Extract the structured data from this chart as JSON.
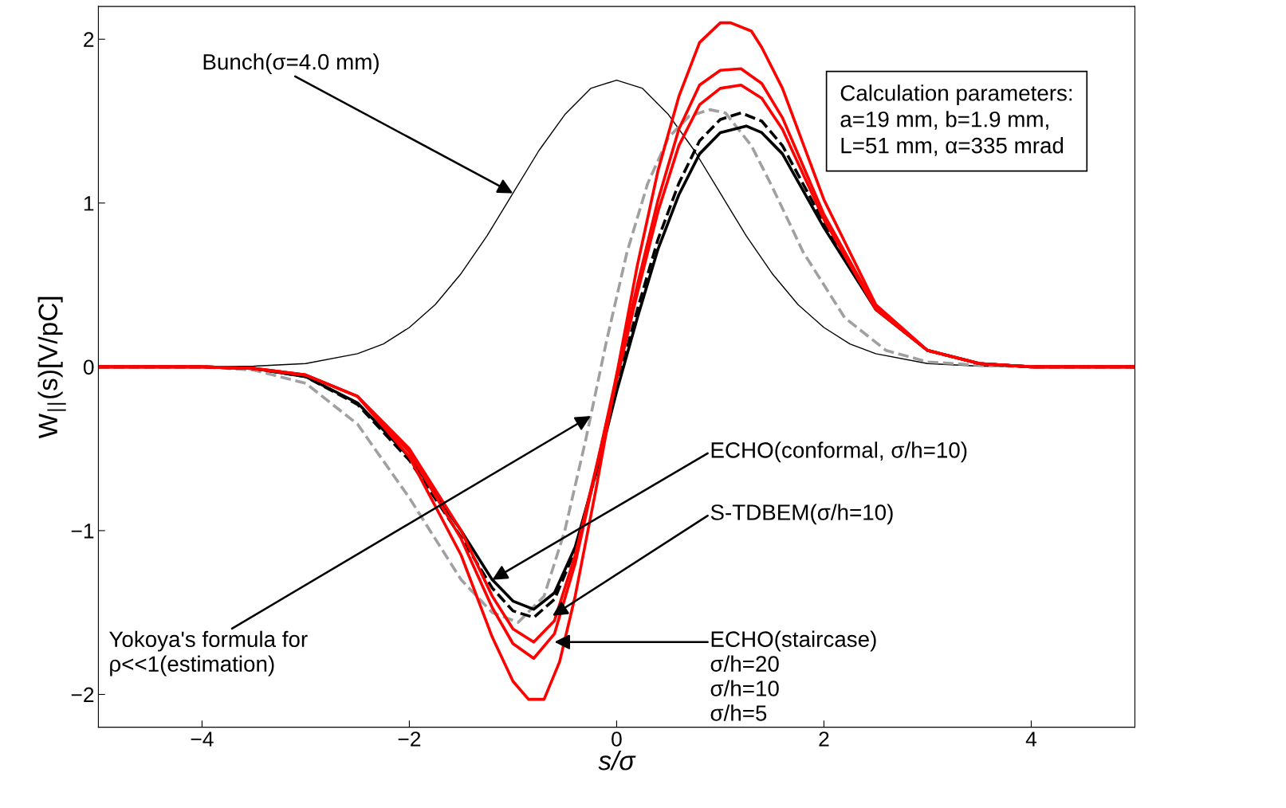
{
  "chart_data": {
    "type": "line",
    "xlabel": "s/σ",
    "ylabel": "W$_{||}$(s)[V/pC]",
    "xlim": [
      -5,
      5
    ],
    "ylim": [
      -2.2,
      2.2
    ],
    "xticks": [
      {
        "value": -4,
        "label": "−4"
      },
      {
        "value": -2,
        "label": "−2"
      },
      0,
      2,
      4
    ],
    "yticks": [
      {
        "value": -2,
        "label": "−2"
      },
      {
        "value": -1,
        "label": "−1"
      },
      0,
      1,
      2
    ],
    "grid": false,
    "legend": false,
    "marker": "none",
    "series": [
      {
        "color": "#000000",
        "line_style": "solid",
        "x": [
          -5,
          -4,
          -3.5,
          -3,
          -2.5,
          -2.25,
          -2,
          -1.75,
          -1.5,
          -1.25,
          -1,
          -0.75,
          -0.5,
          -0.25,
          0,
          0.25,
          0.5,
          0.75,
          1,
          1.25,
          1.5,
          1.75,
          2,
          2.25,
          2.5,
          3,
          3.5,
          4,
          5
        ],
        "values": [
          0,
          0,
          0.004,
          0.02,
          0.08,
          0.14,
          0.24,
          0.38,
          0.57,
          0.8,
          1.06,
          1.32,
          1.54,
          1.7,
          1.75,
          1.7,
          1.54,
          1.32,
          1.06,
          0.8,
          0.57,
          0.38,
          0.24,
          0.14,
          0.08,
          0.02,
          0.004,
          0,
          0
        ]
      },
      {
        "color": "#a0a0a0",
        "line_style": "dashed",
        "x": [
          -5,
          -4,
          -3.5,
          -3,
          -2.5,
          -2,
          -1.5,
          -1.2,
          -0.95,
          -0.7,
          -0.5,
          -0.3,
          -0.1,
          0.1,
          0.3,
          0.5,
          0.7,
          0.9,
          1.05,
          1.3,
          1.5,
          1.8,
          2.2,
          2.6,
          3,
          3.5,
          4,
          5
        ],
        "values": [
          0,
          0,
          -0.02,
          -0.1,
          -0.35,
          -0.8,
          -1.3,
          -1.5,
          -1.56,
          -1.4,
          -1.0,
          -0.45,
          0.15,
          0.7,
          1.12,
          1.4,
          1.53,
          1.57,
          1.55,
          1.35,
          1.1,
          0.7,
          0.3,
          0.1,
          0.03,
          0.01,
          0,
          0
        ]
      },
      {
        "color": "#000000",
        "line_style": "solid",
        "x": [
          -5,
          -4,
          -3.5,
          -3,
          -2.5,
          -2,
          -1.5,
          -1.2,
          -1,
          -0.8,
          -0.6,
          -0.4,
          -0.2,
          0,
          0.2,
          0.4,
          0.6,
          0.8,
          1,
          1.25,
          1.4,
          1.6,
          2,
          2.5,
          3,
          3.5,
          4,
          5
        ],
        "values": [
          0,
          0,
          -0.01,
          -0.06,
          -0.22,
          -0.55,
          -1.0,
          -1.3,
          -1.43,
          -1.48,
          -1.38,
          -1.1,
          -0.65,
          -0.15,
          0.3,
          0.72,
          1.05,
          1.3,
          1.43,
          1.47,
          1.43,
          1.3,
          0.85,
          0.35,
          0.1,
          0.02,
          0,
          0
        ]
      },
      {
        "color": "#000000",
        "line_style": "dashed",
        "x": [
          -5,
          -4,
          -3.5,
          -3,
          -2.5,
          -2,
          -1.5,
          -1.2,
          -1,
          -0.8,
          -0.6,
          -0.4,
          -0.2,
          0,
          0.2,
          0.4,
          0.6,
          0.8,
          1,
          1.2,
          1.4,
          1.6,
          2,
          2.5,
          3,
          3.5,
          4,
          5
        ],
        "values": [
          0,
          0,
          -0.01,
          -0.06,
          -0.23,
          -0.57,
          -1.04,
          -1.35,
          -1.49,
          -1.53,
          -1.42,
          -1.12,
          -0.65,
          -0.12,
          0.35,
          0.78,
          1.12,
          1.38,
          1.51,
          1.55,
          1.5,
          1.35,
          0.88,
          0.36,
          0.1,
          0.02,
          0,
          0
        ]
      },
      {
        "color": "#ff0000",
        "line_style": "solid",
        "x": [
          -5,
          -4,
          -3.5,
          -3,
          -2.5,
          -2,
          -1.5,
          -1.2,
          -1,
          -0.8,
          -0.6,
          -0.4,
          -0.2,
          0,
          0.2,
          0.4,
          0.6,
          0.8,
          1,
          1.2,
          1.4,
          1.6,
          2,
          2.5,
          3,
          3.5,
          4,
          5
        ],
        "values": [
          0,
          0,
          -0.01,
          -0.05,
          -0.18,
          -0.5,
          -1.0,
          -1.4,
          -1.6,
          -1.68,
          -1.55,
          -1.15,
          -0.62,
          -0.08,
          0.45,
          0.95,
          1.35,
          1.6,
          1.7,
          1.72,
          1.64,
          1.45,
          0.9,
          0.35,
          0.1,
          0.02,
          0,
          0
        ]
      },
      {
        "color": "#ff0000",
        "line_style": "solid",
        "x": [
          -5,
          -4,
          -3.5,
          -3,
          -2.5,
          -2,
          -1.5,
          -1.2,
          -1,
          -0.8,
          -0.6,
          -0.4,
          -0.2,
          0,
          0.2,
          0.4,
          0.6,
          0.8,
          1,
          1.2,
          1.4,
          1.6,
          2,
          2.5,
          3,
          3.5,
          4,
          5
        ],
        "values": [
          0,
          0,
          -0.01,
          -0.05,
          -0.18,
          -0.52,
          -1.05,
          -1.47,
          -1.69,
          -1.78,
          -1.63,
          -1.2,
          -0.63,
          -0.05,
          0.5,
          1.02,
          1.45,
          1.72,
          1.81,
          1.82,
          1.73,
          1.52,
          0.93,
          0.36,
          0.1,
          0.02,
          0,
          0
        ]
      },
      {
        "color": "#ff0000",
        "line_style": "solid",
        "x": [
          -5,
          -4,
          -3.5,
          -3,
          -2.5,
          -2,
          -1.5,
          -1.2,
          -1,
          -0.85,
          -0.7,
          -0.55,
          -0.4,
          -0.2,
          0,
          0.2,
          0.4,
          0.6,
          0.8,
          1,
          1.1,
          1.3,
          1.4,
          1.6,
          2,
          2.5,
          3,
          3.5,
          4,
          5
        ],
        "values": [
          0,
          0,
          -0.01,
          -0.05,
          -0.18,
          -0.55,
          -1.15,
          -1.65,
          -1.92,
          -2.03,
          -2.03,
          -1.8,
          -1.4,
          -0.75,
          -0.05,
          0.62,
          1.2,
          1.65,
          1.98,
          2.1,
          2.1,
          2.05,
          1.95,
          1.7,
          1.02,
          0.38,
          0.1,
          0.02,
          0,
          0
        ]
      }
    ],
    "annotations": [
      {
        "text": "Bunch(σ=4.0 mm)",
        "x": -1,
        "y": 1.06
      },
      {
        "text": "Yokoya's formula for\nρ<<1(estimation)",
        "x": -0.25,
        "y": -0.3
      },
      {
        "text": "ECHO(conformal, σ/h=10)",
        "x": -1.2,
        "y": -1.3
      },
      {
        "text": "S-TDBEM(σ/h=10)",
        "x": -0.62,
        "y": -1.52
      },
      {
        "text": "ECHO(staircase)\nσ/h=20\nσ/h=10\nσ/h=5",
        "x": -0.6,
        "y": -1.68
      },
      "Calculation parameters:\na=19 mm, b=1.9 mm,\nL=51 mm, α=335 mrad"
    ]
  }
}
